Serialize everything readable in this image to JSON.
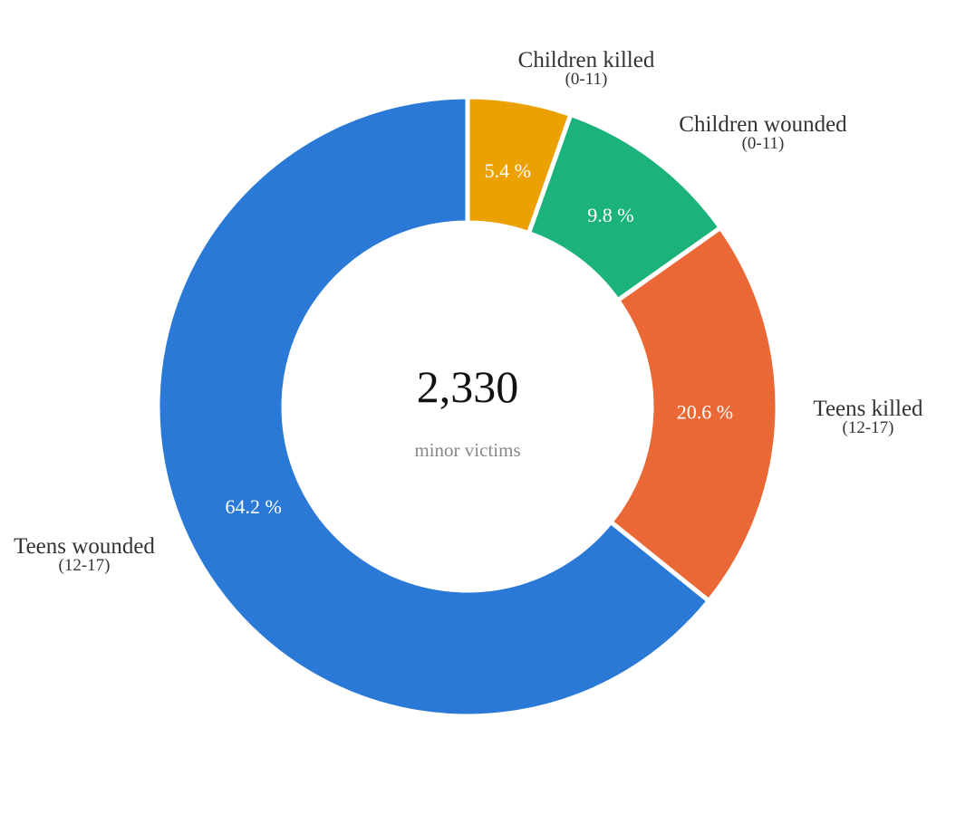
{
  "chart_data": {
    "type": "pie",
    "variant": "donut",
    "center_value": "2,330",
    "center_caption": "minor victims",
    "slices": [
      {
        "name": "Children killed",
        "sub": "(0-11)",
        "value": 5.4,
        "label": "5.4 %",
        "color": "#EBA102"
      },
      {
        "name": "Children wounded",
        "sub": "(0-11)",
        "value": 9.8,
        "label": "9.8 %",
        "color": "#1CB27B"
      },
      {
        "name": "Teens killed",
        "sub": "(12-17)",
        "value": 20.6,
        "label": "20.6 %",
        "color": "#EA6836"
      },
      {
        "name": "Teens wounded",
        "sub": "(12-17)",
        "value": 64.2,
        "label": "64.2 %",
        "color": "#2A79D7"
      }
    ],
    "start_angle": "top",
    "direction": "clockwise",
    "legend": "none"
  }
}
